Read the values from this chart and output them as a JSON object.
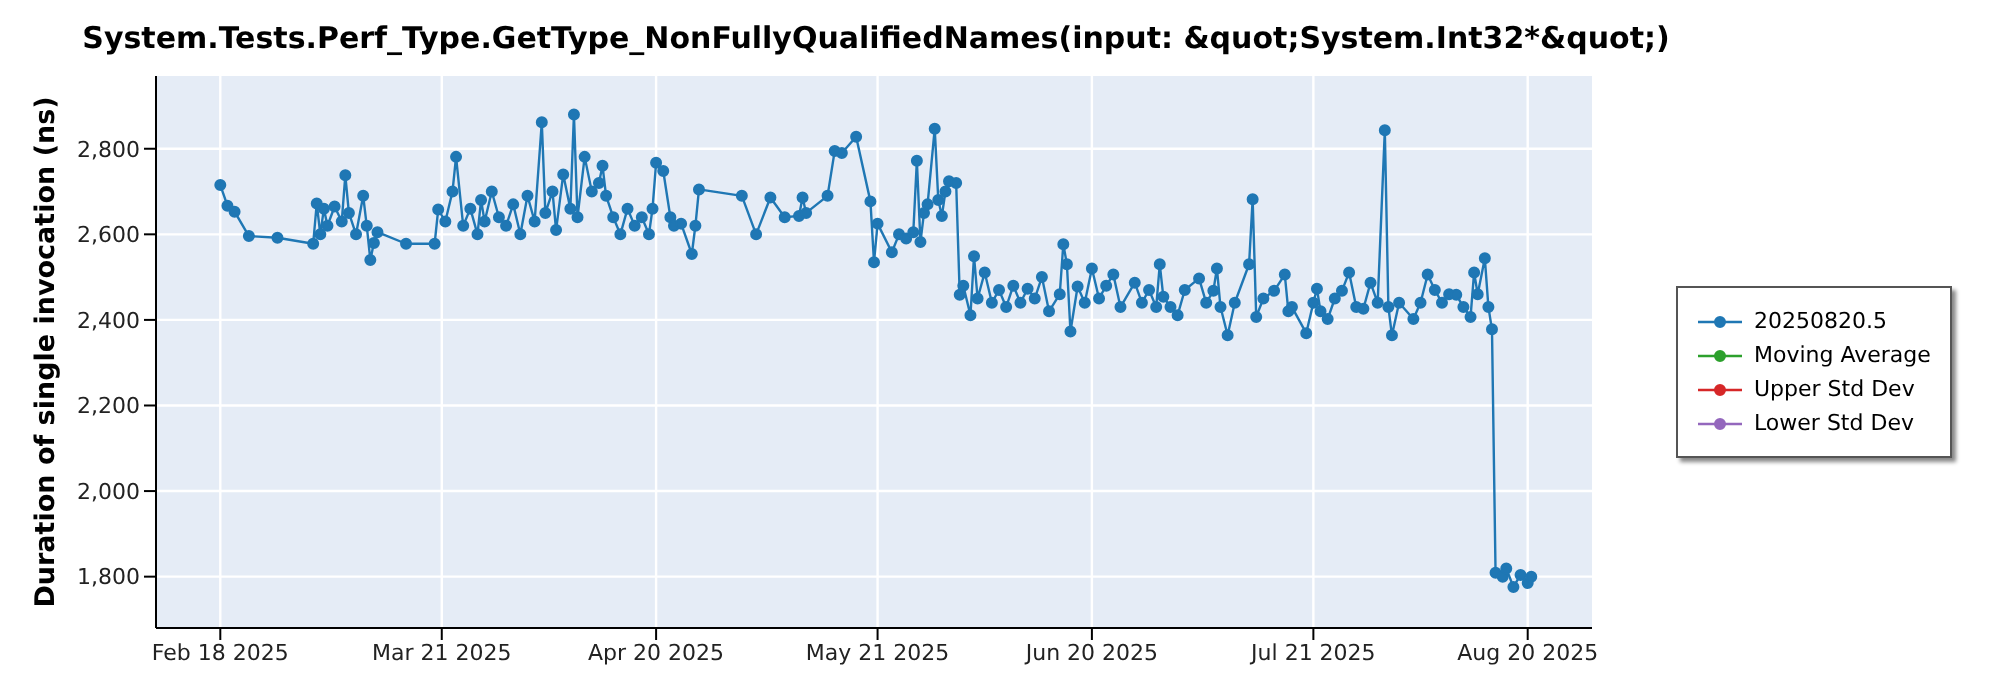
{
  "chart_data": {
    "type": "line",
    "title": "System.Tests.Perf_Type.GetType_NonFullyQualifiedNames(input: &quot;System.Int32*&quot;)",
    "ylabel": "Duration of single invocation (ns)",
    "x": [
      "2025-02-18",
      "2025-02-19",
      "2025-02-20",
      "2025-02-22",
      "2025-02-26",
      "2025-03-03",
      "2025-03-03T12:00",
      "2025-03-04",
      "2025-03-04T12:00",
      "2025-03-05",
      "2025-03-06",
      "2025-03-07",
      "2025-03-07T12:00",
      "2025-03-08",
      "2025-03-09",
      "2025-03-10",
      "2025-03-10T12:00",
      "2025-03-11",
      "2025-03-11T12:00",
      "2025-03-12",
      "2025-03-16",
      "2025-03-20",
      "2025-03-20T12:00",
      "2025-03-21T12:00",
      "2025-03-22T12:00",
      "2025-03-23",
      "2025-03-24",
      "2025-03-25",
      "2025-03-26",
      "2025-03-26T12:00",
      "2025-03-27",
      "2025-03-28",
      "2025-03-29",
      "2025-03-30",
      "2025-03-31",
      "2025-04-01",
      "2025-04-02",
      "2025-04-03",
      "2025-04-04",
      "2025-04-04T12:00",
      "2025-04-05T12:00",
      "2025-04-06",
      "2025-04-07",
      "2025-04-08",
      "2025-04-08T12:00",
      "2025-04-09",
      "2025-04-10",
      "2025-04-11",
      "2025-04-12",
      "2025-04-12T12:00",
      "2025-04-13",
      "2025-04-14",
      "2025-04-15",
      "2025-04-16",
      "2025-04-17",
      "2025-04-18",
      "2025-04-19",
      "2025-04-19T12:00",
      "2025-04-20",
      "2025-04-21",
      "2025-04-22",
      "2025-04-22T12:00",
      "2025-04-23T12:00",
      "2025-04-25",
      "2025-04-25T12:00",
      "2025-04-26",
      "2025-05-02",
      "2025-05-04",
      "2025-05-06",
      "2025-05-08",
      "2025-05-10",
      "2025-05-10T12:00",
      "2025-05-11",
      "2025-05-14",
      "2025-05-15",
      "2025-05-16",
      "2025-05-18",
      "2025-05-20",
      "2025-05-20T12:00",
      "2025-05-21",
      "2025-05-23",
      "2025-05-24",
      "2025-05-25",
      "2025-05-26",
      "2025-05-26T12:00",
      "2025-05-27",
      "2025-05-27T12:00",
      "2025-05-28",
      "2025-05-29",
      "2025-05-29T12:00",
      "2025-05-30",
      "2025-05-30T12:00",
      "2025-05-31",
      "2025-06-01",
      "2025-06-01T12:00",
      "2025-06-02",
      "2025-06-03",
      "2025-06-03T12:00",
      "2025-06-04",
      "2025-06-05",
      "2025-06-06",
      "2025-06-07",
      "2025-06-08",
      "2025-06-09",
      "2025-06-10",
      "2025-06-11",
      "2025-06-12",
      "2025-06-13",
      "2025-06-14",
      "2025-06-15T12:00",
      "2025-06-16",
      "2025-06-16T12:00",
      "2025-06-17",
      "2025-06-18",
      "2025-06-19",
      "2025-06-20",
      "2025-06-21",
      "2025-06-22",
      "2025-06-23",
      "2025-06-24",
      "2025-06-26",
      "2025-06-27",
      "2025-06-28",
      "2025-06-29",
      "2025-06-29T12:00",
      "2025-06-30",
      "2025-07-01",
      "2025-07-02",
      "2025-07-03",
      "2025-07-05",
      "2025-07-06",
      "2025-07-07",
      "2025-07-07T12:00",
      "2025-07-08",
      "2025-07-09",
      "2025-07-10",
      "2025-07-12",
      "2025-07-12T12:00",
      "2025-07-13",
      "2025-07-14",
      "2025-07-15T12:00",
      "2025-07-17",
      "2025-07-17T12:00",
      "2025-07-18",
      "2025-07-20",
      "2025-07-21",
      "2025-07-21T12:00",
      "2025-07-22",
      "2025-07-23",
      "2025-07-24",
      "2025-07-25",
      "2025-07-26",
      "2025-07-27",
      "2025-07-28",
      "2025-07-29",
      "2025-07-30",
      "2025-07-31",
      "2025-07-31T12:00",
      "2025-08-01",
      "2025-08-02",
      "2025-08-04",
      "2025-08-05",
      "2025-08-06",
      "2025-08-07",
      "2025-08-08",
      "2025-08-09",
      "2025-08-10",
      "2025-08-11",
      "2025-08-12",
      "2025-08-12T12:00",
      "2025-08-13",
      "2025-08-14",
      "2025-08-14T12:00",
      "2025-08-15",
      "2025-08-15T12:00",
      "2025-08-16T12:00",
      "2025-08-17",
      "2025-08-18",
      "2025-08-19",
      "2025-08-20",
      "2025-08-20T12:00"
    ],
    "series": [
      {
        "name": "20250820.5",
        "color": "#1f77b4",
        "values": [
          2715,
          2667,
          2653,
          2596,
          2592,
          2578,
          2672,
          2600,
          2660,
          2620,
          2665,
          2630,
          2738,
          2650,
          2600,
          2690,
          2620,
          2540,
          2580,
          2605,
          2578,
          2578,
          2658,
          2630,
          2700,
          2781,
          2620,
          2660,
          2600,
          2680,
          2630,
          2700,
          2640,
          2620,
          2670,
          2600,
          2690,
          2630,
          2862,
          2650,
          2700,
          2610,
          2740,
          2660,
          2880,
          2640,
          2781,
          2700,
          2720,
          2760,
          2690,
          2640,
          2600,
          2660,
          2620,
          2640,
          2600,
          2660,
          2767,
          2748,
          2640,
          2620,
          2625,
          2554,
          2620,
          2705,
          2690,
          2600,
          2686,
          2640,
          2643,
          2686,
          2650,
          2690,
          2795,
          2790,
          2828,
          2677,
          2535,
          2625,
          2558,
          2600,
          2590,
          2605,
          2772,
          2582,
          2650,
          2670,
          2847,
          2680,
          2643,
          2700,
          2724,
          2720,
          2459,
          2480,
          2411,
          2549,
          2450,
          2511,
          2440,
          2470,
          2430,
          2480,
          2440,
          2473,
          2450,
          2500,
          2420,
          2460,
          2577,
          2530,
          2373,
          2478,
          2440,
          2520,
          2450,
          2480,
          2506,
          2430,
          2487,
          2440,
          2470,
          2430,
          2530,
          2454,
          2430,
          2411,
          2470,
          2497,
          2440,
          2468,
          2520,
          2430,
          2364,
          2440,
          2530,
          2682,
          2407,
          2450,
          2468,
          2506,
          2420,
          2430,
          2369,
          2440,
          2473,
          2420,
          2402,
          2450,
          2468,
          2511,
          2430,
          2426,
          2487,
          2440,
          2843,
          2430,
          2364,
          2440,
          2402,
          2440,
          2506,
          2470,
          2440,
          2460,
          2459,
          2430,
          2407,
          2511,
          2460,
          2544,
          2430,
          2378,
          1809,
          1800,
          1819,
          1776,
          1804,
          1785,
          1800
        ]
      },
      {
        "name": "Moving Average",
        "color": "#2ca02c",
        "values": [
          null,
          null,
          null,
          null,
          null,
          null,
          null,
          null,
          null,
          null,
          null,
          null,
          null,
          null,
          null,
          null,
          null,
          null,
          null,
          null,
          null,
          null,
          null,
          null,
          null,
          null,
          null,
          null,
          null,
          null,
          null,
          null,
          null,
          null,
          null,
          null,
          null,
          null,
          null,
          null,
          null,
          null,
          null,
          null,
          null,
          null,
          null,
          null,
          null,
          null,
          null,
          null,
          null,
          null,
          null,
          null,
          null,
          null,
          null,
          null,
          null,
          null,
          null,
          null,
          null,
          null,
          null,
          null,
          null,
          null,
          null,
          null,
          null,
          null,
          null,
          null,
          null,
          null,
          null,
          null,
          null,
          null,
          null,
          null,
          null,
          null,
          null,
          null,
          null,
          null,
          null,
          null,
          null,
          null,
          null,
          null,
          null,
          null,
          null,
          null,
          null,
          null,
          null,
          null,
          null,
          null,
          null,
          null,
          null,
          null,
          null,
          null,
          null,
          null,
          null,
          null,
          null,
          null,
          null,
          null,
          null,
          null,
          null,
          null,
          null,
          null,
          null,
          null,
          null,
          null,
          null,
          null,
          null,
          null,
          null,
          null,
          null,
          null,
          null,
          null,
          null,
          null,
          null,
          null,
          null,
          null,
          null,
          null,
          null,
          null,
          null,
          null,
          null,
          null,
          null,
          null,
          null,
          null,
          null,
          null,
          null,
          null,
          null,
          null,
          null,
          null,
          null,
          null,
          null,
          null,
          null,
          null,
          null,
          null,
          null,
          null,
          null,
          null,
          null,
          null,
          null
        ]
      },
      {
        "name": "Upper Std Dev",
        "color": "#d62728",
        "values": [
          null,
          null,
          null,
          null,
          null,
          null,
          null,
          null,
          null,
          null,
          null,
          null,
          null,
          null,
          null,
          null,
          null,
          null,
          null,
          null,
          null,
          null,
          null,
          null,
          null,
          null,
          null,
          null,
          null,
          null,
          null,
          null,
          null,
          null,
          null,
          null,
          null,
          null,
          null,
          null,
          null,
          null,
          null,
          null,
          null,
          null,
          null,
          null,
          null,
          null,
          null,
          null,
          null,
          null,
          null,
          null,
          null,
          null,
          null,
          null,
          null,
          null,
          null,
          null,
          null,
          null,
          null,
          null,
          null,
          null,
          null,
          null,
          null,
          null,
          null,
          null,
          null,
          null,
          null,
          null,
          null,
          null,
          null,
          null,
          null,
          null,
          null,
          null,
          null,
          null,
          null,
          null,
          null,
          null,
          null,
          null,
          null,
          null,
          null,
          null,
          null,
          null,
          null,
          null,
          null,
          null,
          null,
          null,
          null,
          null,
          null,
          null,
          null,
          null,
          null,
          null,
          null,
          null,
          null,
          null,
          null,
          null,
          null,
          null,
          null,
          null,
          null,
          null,
          null,
          null,
          null,
          null,
          null,
          null,
          null,
          null,
          null,
          null,
          null,
          null,
          null,
          null,
          null,
          null,
          null,
          null,
          null,
          null,
          null,
          null,
          null,
          null,
          null,
          null,
          null,
          null,
          null,
          null,
          null,
          null,
          null,
          null,
          null,
          null,
          null,
          null,
          null,
          null,
          null,
          null,
          null,
          null,
          null,
          null,
          null,
          null,
          null,
          null,
          null,
          null,
          null
        ]
      },
      {
        "name": "Lower Std Dev",
        "color": "#9467bd",
        "values": [
          null,
          null,
          null,
          null,
          null,
          null,
          null,
          null,
          null,
          null,
          null,
          null,
          null,
          null,
          null,
          null,
          null,
          null,
          null,
          null,
          null,
          null,
          null,
          null,
          null,
          null,
          null,
          null,
          null,
          null,
          null,
          null,
          null,
          null,
          null,
          null,
          null,
          null,
          null,
          null,
          null,
          null,
          null,
          null,
          null,
          null,
          null,
          null,
          null,
          null,
          null,
          null,
          null,
          null,
          null,
          null,
          null,
          null,
          null,
          null,
          null,
          null,
          null,
          null,
          null,
          null,
          null,
          null,
          null,
          null,
          null,
          null,
          null,
          null,
          null,
          null,
          null,
          null,
          null,
          null,
          null,
          null,
          null,
          null,
          null,
          null,
          null,
          null,
          null,
          null,
          null,
          null,
          null,
          null,
          null,
          null,
          null,
          null,
          null,
          null,
          null,
          null,
          null,
          null,
          null,
          null,
          null,
          null,
          null,
          null,
          null,
          null,
          null,
          null,
          null,
          null,
          null,
          null,
          null,
          null,
          null,
          null,
          null,
          null,
          null,
          null,
          null,
          null,
          null,
          null,
          null,
          null,
          null,
          null,
          null,
          null,
          null,
          null,
          null,
          null,
          null,
          null,
          null,
          null,
          null,
          null,
          null,
          null,
          null,
          null,
          null,
          null,
          null,
          null,
          null,
          null,
          null,
          null,
          null,
          null,
          null,
          null,
          null,
          null,
          null,
          null,
          null,
          null,
          null,
          null,
          null,
          null,
          null,
          null,
          null,
          null,
          null,
          null,
          null,
          null,
          null
        ]
      }
    ],
    "xlim": [
      "2025-02-09",
      "2025-08-29"
    ],
    "xticks": [
      {
        "value": "2025-02-18",
        "label": "Feb 18 2025"
      },
      {
        "value": "2025-03-21",
        "label": "Mar 21 2025"
      },
      {
        "value": "2025-04-20",
        "label": "Apr 20 2025"
      },
      {
        "value": "2025-05-21",
        "label": "May 21 2025"
      },
      {
        "value": "2025-06-20",
        "label": "Jun 20 2025"
      },
      {
        "value": "2025-07-21",
        "label": "Jul 21 2025"
      },
      {
        "value": "2025-08-20",
        "label": "Aug 20 2025"
      }
    ],
    "ylim": [
      1680,
      2970
    ],
    "yticks": [
      {
        "value": 1800,
        "label": "1,800"
      },
      {
        "value": 2000,
        "label": "2,000"
      },
      {
        "value": 2200,
        "label": "2,200"
      },
      {
        "value": 2400,
        "label": "2,400"
      },
      {
        "value": 2600,
        "label": "2,600"
      },
      {
        "value": 2800,
        "label": "2,800"
      }
    ],
    "grid": true,
    "legend": "right",
    "marker": "circle",
    "line_style": "solid"
  }
}
